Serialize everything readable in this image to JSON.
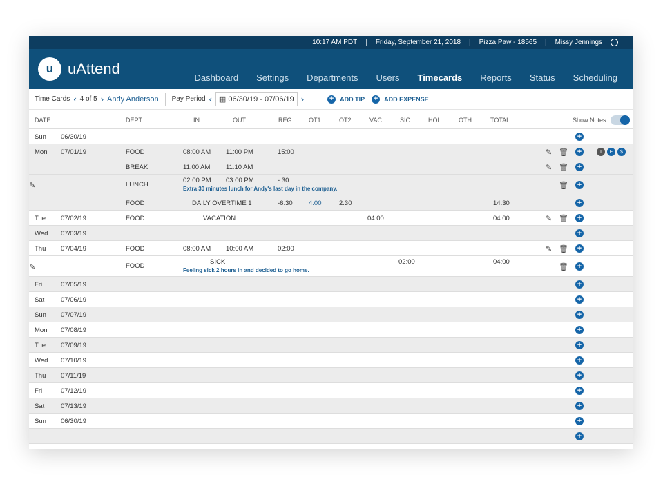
{
  "topbar": {
    "time": "10:17 AM PDT",
    "date": "Friday, September 21, 2018",
    "location": "Pizza Paw - 18565",
    "user": "Missy Jennings",
    "user_icon": "user-circle-icon"
  },
  "brand": {
    "name": "uAttend",
    "logo_mark": "u"
  },
  "nav": [
    {
      "label": "Dashboard"
    },
    {
      "label": "Settings"
    },
    {
      "label": "Departments"
    },
    {
      "label": "Users"
    },
    {
      "label": "Timecards",
      "active": true
    },
    {
      "label": "Reports"
    },
    {
      "label": "Status"
    },
    {
      "label": "Scheduling"
    }
  ],
  "toolbar": {
    "section": "Time Cards",
    "position": "4 of 5",
    "employee": "Andy Anderson",
    "pay_period_label": "Pay Period",
    "pay_period": "06/30/19 - 07/06/19",
    "add_tip": "ADD TIP",
    "add_expense": "ADD EXPENSE"
  },
  "columns": {
    "date": "DATE",
    "dept": "DEPT",
    "in": "IN",
    "out": "OUT",
    "reg": "REG",
    "ot1": "OT1",
    "ot2": "OT2",
    "vac": "VAC",
    "sic": "SIC",
    "hol": "HOL",
    "oth": "OTH",
    "total": "TOTAL",
    "show_notes": "Show Notes",
    "show_notes_on": true
  },
  "colors": {
    "topbar": "#0d3d60",
    "header": "#0f507b",
    "accent": "#1565a8"
  },
  "rows": [
    {
      "day": "Sun",
      "date": "06/30/19",
      "bg": "w"
    },
    {
      "day": "Mon",
      "date": "07/01/19",
      "dept": "FOOD",
      "in": "08:00 AM",
      "out": "11:00 PM",
      "reg": "15:00",
      "bg": "g",
      "actions": true,
      "badges": [
        "T",
        "E",
        "$"
      ]
    },
    {
      "dept": "BREAK",
      "in": "11:00 AM",
      "out": "11:10 AM",
      "bg": "g",
      "actions": true
    },
    {
      "dept": "LUNCH",
      "in": "02:00 PM",
      "out": "03:00 PM",
      "reg": "-:30",
      "note": "Extra 30 minutes lunch for Andy's last day in the company.",
      "bg": "g",
      "actions": true
    },
    {
      "dept": "FOOD",
      "type": "DAILY OVERTIME 1",
      "reg": "-6:30",
      "ot1": "4:00",
      "ot2": "2:30",
      "total": "14:30",
      "bg": "g"
    },
    {
      "day": "Tue",
      "date": "07/02/19",
      "dept": "FOOD",
      "type": "VACATION",
      "vac": "04:00",
      "total": "04:00",
      "bg": "w",
      "actions": true
    },
    {
      "day": "Wed",
      "date": "07/03/19",
      "bg": "g"
    },
    {
      "day": "Thu",
      "date": "07/04/19",
      "dept": "FOOD",
      "in": "08:00 AM",
      "out": "10:00 AM",
      "reg": "02:00",
      "bg": "w",
      "actions": true
    },
    {
      "dept": "FOOD",
      "type": "SICK",
      "sic": "02:00",
      "total": "04:00",
      "note": "Feeling sick 2 hours in and decided to go home.",
      "bg": "w",
      "actions": true
    },
    {
      "day": "Fri",
      "date": "07/05/19",
      "bg": "g"
    },
    {
      "day": "Sat",
      "date": "07/06/19",
      "bg": "w"
    },
    {
      "day": "Sun",
      "date": "07/07/19",
      "bg": "g"
    },
    {
      "day": "Mon",
      "date": "07/08/19",
      "bg": "w"
    },
    {
      "day": "Tue",
      "date": "07/09/19",
      "bg": "g"
    },
    {
      "day": "Wed",
      "date": "07/10/19",
      "bg": "w"
    },
    {
      "day": "Thu",
      "date": "07/11/19",
      "bg": "g"
    },
    {
      "day": "Fri",
      "date": "07/12/19",
      "bg": "w"
    },
    {
      "day": "Sat",
      "date": "07/13/19",
      "bg": "g"
    },
    {
      "day": "Sun",
      "date": "06/30/19",
      "bg": "w"
    },
    {
      "bg": "g"
    }
  ]
}
